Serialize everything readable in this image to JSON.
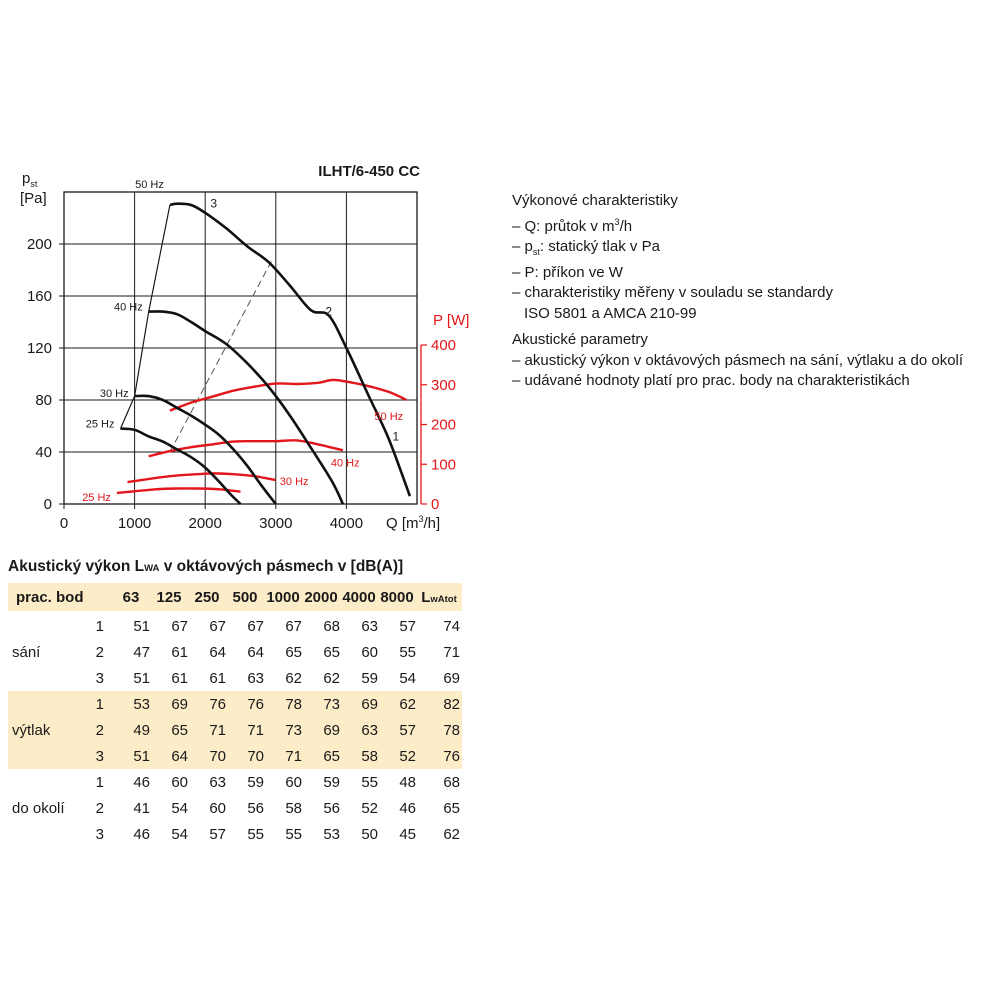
{
  "chart_data": {
    "type": "line",
    "title": "ILHT/6-450 CC",
    "ylabel": "p",
    "ylabel_sub": "st",
    "ylabel_unit": "[Pa]",
    "y2label": "P [W]",
    "xlabel_main": "Q [m",
    "xlabel_sup": "3",
    "xlabel_end": "/h]",
    "xlim": [
      0,
      5000
    ],
    "ylim": [
      0,
      240
    ],
    "y2lim": [
      0,
      400
    ],
    "grid": true,
    "x_ticks": [
      "0",
      "1000",
      "2000",
      "3000",
      "4000"
    ],
    "x_tick_values": [
      0,
      1000,
      2000,
      3000,
      4000
    ],
    "y_ticks": [
      "0",
      "40",
      "80",
      "120",
      "160",
      "200"
    ],
    "y_tick_values": [
      0,
      40,
      80,
      120,
      160,
      200
    ],
    "y2_ticks": [
      "0",
      "100",
      "200",
      "300",
      "400"
    ],
    "y2_tick_values": [
      0,
      100,
      200,
      300,
      400
    ],
    "pressure_series": [
      {
        "name": "50 Hz",
        "x": [
          1500,
          1600,
          1800,
          2000,
          2300,
          2600,
          2900,
          3200,
          3500,
          3750,
          4000,
          4300,
          4600,
          4900
        ],
        "y": [
          230,
          231,
          230,
          224,
          212,
          198,
          186,
          168,
          149,
          145,
          120,
          85,
          50,
          6
        ]
      },
      {
        "name": "40 Hz",
        "x": [
          1200,
          1400,
          1600,
          1800,
          2000,
          2300,
          2600,
          2900,
          3200,
          3500,
          3800,
          3950
        ],
        "y": [
          148,
          148,
          146,
          140,
          133,
          123,
          108,
          90,
          68,
          43,
          17,
          0
        ]
      },
      {
        "name": "30 Hz",
        "x": [
          1000,
          1200,
          1400,
          1600,
          1800,
          2000,
          2200,
          2400,
          2600,
          2800,
          3000
        ],
        "y": [
          83,
          83,
          80,
          74,
          68,
          61,
          53,
          42,
          29,
          14,
          0
        ]
      },
      {
        "name": "25 Hz",
        "x": [
          800,
          1000,
          1200,
          1400,
          1600,
          1800,
          2000,
          2200,
          2350,
          2500
        ],
        "y": [
          58,
          57,
          52,
          48,
          42,
          36,
          28,
          17,
          8,
          0
        ]
      }
    ],
    "power_series": [
      {
        "name": "50 Hz",
        "x": [
          1500,
          1800,
          2100,
          2400,
          2700,
          3000,
          3300,
          3600,
          3800,
          4000,
          4300,
          4600,
          4850
        ],
        "y": [
          235,
          255,
          270,
          285,
          295,
          303,
          302,
          305,
          312,
          308,
          297,
          282,
          262
        ]
      },
      {
        "name": "40 Hz",
        "x": [
          1200,
          1500,
          1800,
          2100,
          2400,
          2700,
          3000,
          3300,
          3600,
          3950
        ],
        "y": [
          120,
          133,
          143,
          150,
          157,
          158,
          158,
          160,
          150,
          135
        ]
      },
      {
        "name": "30 Hz",
        "x": [
          900,
          1200,
          1500,
          1800,
          2100,
          2400,
          2700,
          3000
        ],
        "y": [
          55,
          63,
          70,
          74,
          77,
          75,
          70,
          60
        ]
      },
      {
        "name": "25 Hz",
        "x": [
          750,
          1000,
          1300,
          1600,
          1900,
          2200,
          2500
        ],
        "y": [
          28,
          32,
          37,
          39,
          39,
          37,
          31
        ]
      }
    ],
    "points": [
      {
        "label": "3",
        "x": 2120,
        "y": 231
      },
      {
        "label": "2",
        "x": 3750,
        "y": 148
      },
      {
        "label": "1",
        "x": 4700,
        "y": 52
      }
    ],
    "operating_line": {
      "x": [
        1500,
        2950
      ],
      "y": [
        40,
        188
      ]
    },
    "axis_color": "#1a1a1a",
    "pressure_color": "#111111",
    "power_color": "#e3161b"
  },
  "info": {
    "perf_title": "Výkonové charakteristiky",
    "q_pre": "Q: průtok v m",
    "q_sup": "3",
    "q_post": "/h",
    "p_pre": "p",
    "p_sub": "st",
    "p_post": ": statický tlak v Pa",
    "power": "P: příkon ve W",
    "std_line1": "charakteristiky měřeny v souladu se standardy",
    "std_line2": "ISO 5801 a AMCA 210-99",
    "acou_title": "Akustické parametry",
    "acou_item1": "akustický výkon v oktávových pásmech na sání, výtlaku a do okolí",
    "acou_item2": "udávané hodnoty platí pro prac. body na charakteristikách"
  },
  "table": {
    "title_pre": "Akustický výkon L",
    "title_sub": "WA",
    "title_post": " v oktávových pásmech v [dB(A)]",
    "headers": [
      "prac. bod",
      "63",
      "125",
      "250",
      "500",
      "1000",
      "2000",
      "4000",
      "8000"
    ],
    "last_header": "L",
    "last_header_sub": "wAtot",
    "groups": [
      {
        "label": "sání",
        "rows": [
          {
            "point": "1",
            "values": [
              "51",
              "67",
              "67",
              "67",
              "67",
              "68",
              "63",
              "57",
              "74"
            ]
          },
          {
            "point": "2",
            "values": [
              "47",
              "61",
              "64",
              "64",
              "65",
              "65",
              "60",
              "55",
              "71"
            ]
          },
          {
            "point": "3",
            "values": [
              "51",
              "61",
              "61",
              "63",
              "62",
              "62",
              "59",
              "54",
              "69"
            ]
          }
        ]
      },
      {
        "label": "výtlak",
        "rows": [
          {
            "point": "1",
            "values": [
              "53",
              "69",
              "76",
              "76",
              "78",
              "73",
              "69",
              "62",
              "82"
            ]
          },
          {
            "point": "2",
            "values": [
              "49",
              "65",
              "71",
              "71",
              "73",
              "69",
              "63",
              "57",
              "78"
            ]
          },
          {
            "point": "3",
            "values": [
              "51",
              "64",
              "70",
              "70",
              "71",
              "65",
              "58",
              "52",
              "76"
            ]
          }
        ]
      },
      {
        "label": "do okolí",
        "rows": [
          {
            "point": "1",
            "values": [
              "46",
              "60",
              "63",
              "59",
              "60",
              "59",
              "55",
              "48",
              "68"
            ]
          },
          {
            "point": "2",
            "values": [
              "41",
              "54",
              "60",
              "56",
              "58",
              "56",
              "52",
              "46",
              "65"
            ]
          },
          {
            "point": "3",
            "values": [
              "46",
              "54",
              "57",
              "55",
              "55",
              "53",
              "50",
              "45",
              "62"
            ]
          }
        ]
      }
    ]
  }
}
